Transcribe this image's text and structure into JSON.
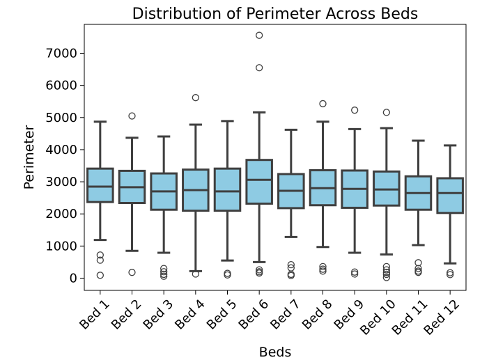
{
  "chart_data": {
    "type": "box",
    "title": "Distribution of Perimeter Across Beds",
    "xlabel": "Beds",
    "ylabel": "Perimeter",
    "ylim": [
      -380,
      7900
    ],
    "yticks": [
      0,
      1000,
      2000,
      3000,
      4000,
      5000,
      6000,
      7000
    ],
    "grid": false,
    "colors": {
      "box_fill": "#8ecbe3",
      "line": "#3f3f3f"
    },
    "categories": [
      "Bed 1",
      "Bed 2",
      "Bed 3",
      "Bed 4",
      "Bed 5",
      "Bed 6",
      "Bed 7",
      "Bed 8",
      "Bed 9",
      "Bed 10",
      "Bed 11",
      "Bed 12"
    ],
    "boxes": [
      {
        "whisker_low": 1190,
        "q1": 2370,
        "median": 2850,
        "q3": 3410,
        "whisker_high": 4870,
        "outliers": [
          720,
          560,
          90
        ]
      },
      {
        "whisker_low": 850,
        "q1": 2340,
        "median": 2830,
        "q3": 3340,
        "whisker_high": 4370,
        "outliers": [
          5050,
          180
        ]
      },
      {
        "whisker_low": 790,
        "q1": 2130,
        "median": 2700,
        "q3": 3260,
        "whisker_high": 4410,
        "outliers": [
          300,
          200,
          120,
          60
        ]
      },
      {
        "whisker_low": 220,
        "q1": 2100,
        "median": 2740,
        "q3": 3380,
        "whisker_high": 4780,
        "outliers": [
          5620,
          130
        ]
      },
      {
        "whisker_low": 550,
        "q1": 2100,
        "median": 2700,
        "q3": 3410,
        "whisker_high": 4890,
        "outliers": [
          150,
          100
        ]
      },
      {
        "whisker_low": 500,
        "q1": 2320,
        "median": 3060,
        "q3": 3680,
        "whisker_high": 5160,
        "outliers": [
          7560,
          6550,
          260,
          200,
          160
        ]
      },
      {
        "whisker_low": 1280,
        "q1": 2180,
        "median": 2720,
        "q3": 3240,
        "whisker_high": 4620,
        "outliers": [
          420,
          320,
          120,
          80
        ]
      },
      {
        "whisker_low": 970,
        "q1": 2270,
        "median": 2800,
        "q3": 3360,
        "whisker_high": 4870,
        "outliers": [
          5430,
          360,
          280,
          220
        ]
      },
      {
        "whisker_low": 790,
        "q1": 2190,
        "median": 2780,
        "q3": 3350,
        "whisker_high": 4640,
        "outliers": [
          5230,
          190,
          130
        ]
      },
      {
        "whisker_low": 740,
        "q1": 2260,
        "median": 2760,
        "q3": 3320,
        "whisker_high": 4670,
        "outliers": [
          5160,
          360,
          260,
          180,
          120,
          20
        ]
      },
      {
        "whisker_low": 1030,
        "q1": 2130,
        "median": 2650,
        "q3": 3170,
        "whisker_high": 4280,
        "outliers": [
          480,
          300,
          220,
          180
        ]
      },
      {
        "whisker_low": 460,
        "q1": 2030,
        "median": 2650,
        "q3": 3110,
        "whisker_high": 4130,
        "outliers": [
          170,
          110
        ]
      }
    ]
  }
}
